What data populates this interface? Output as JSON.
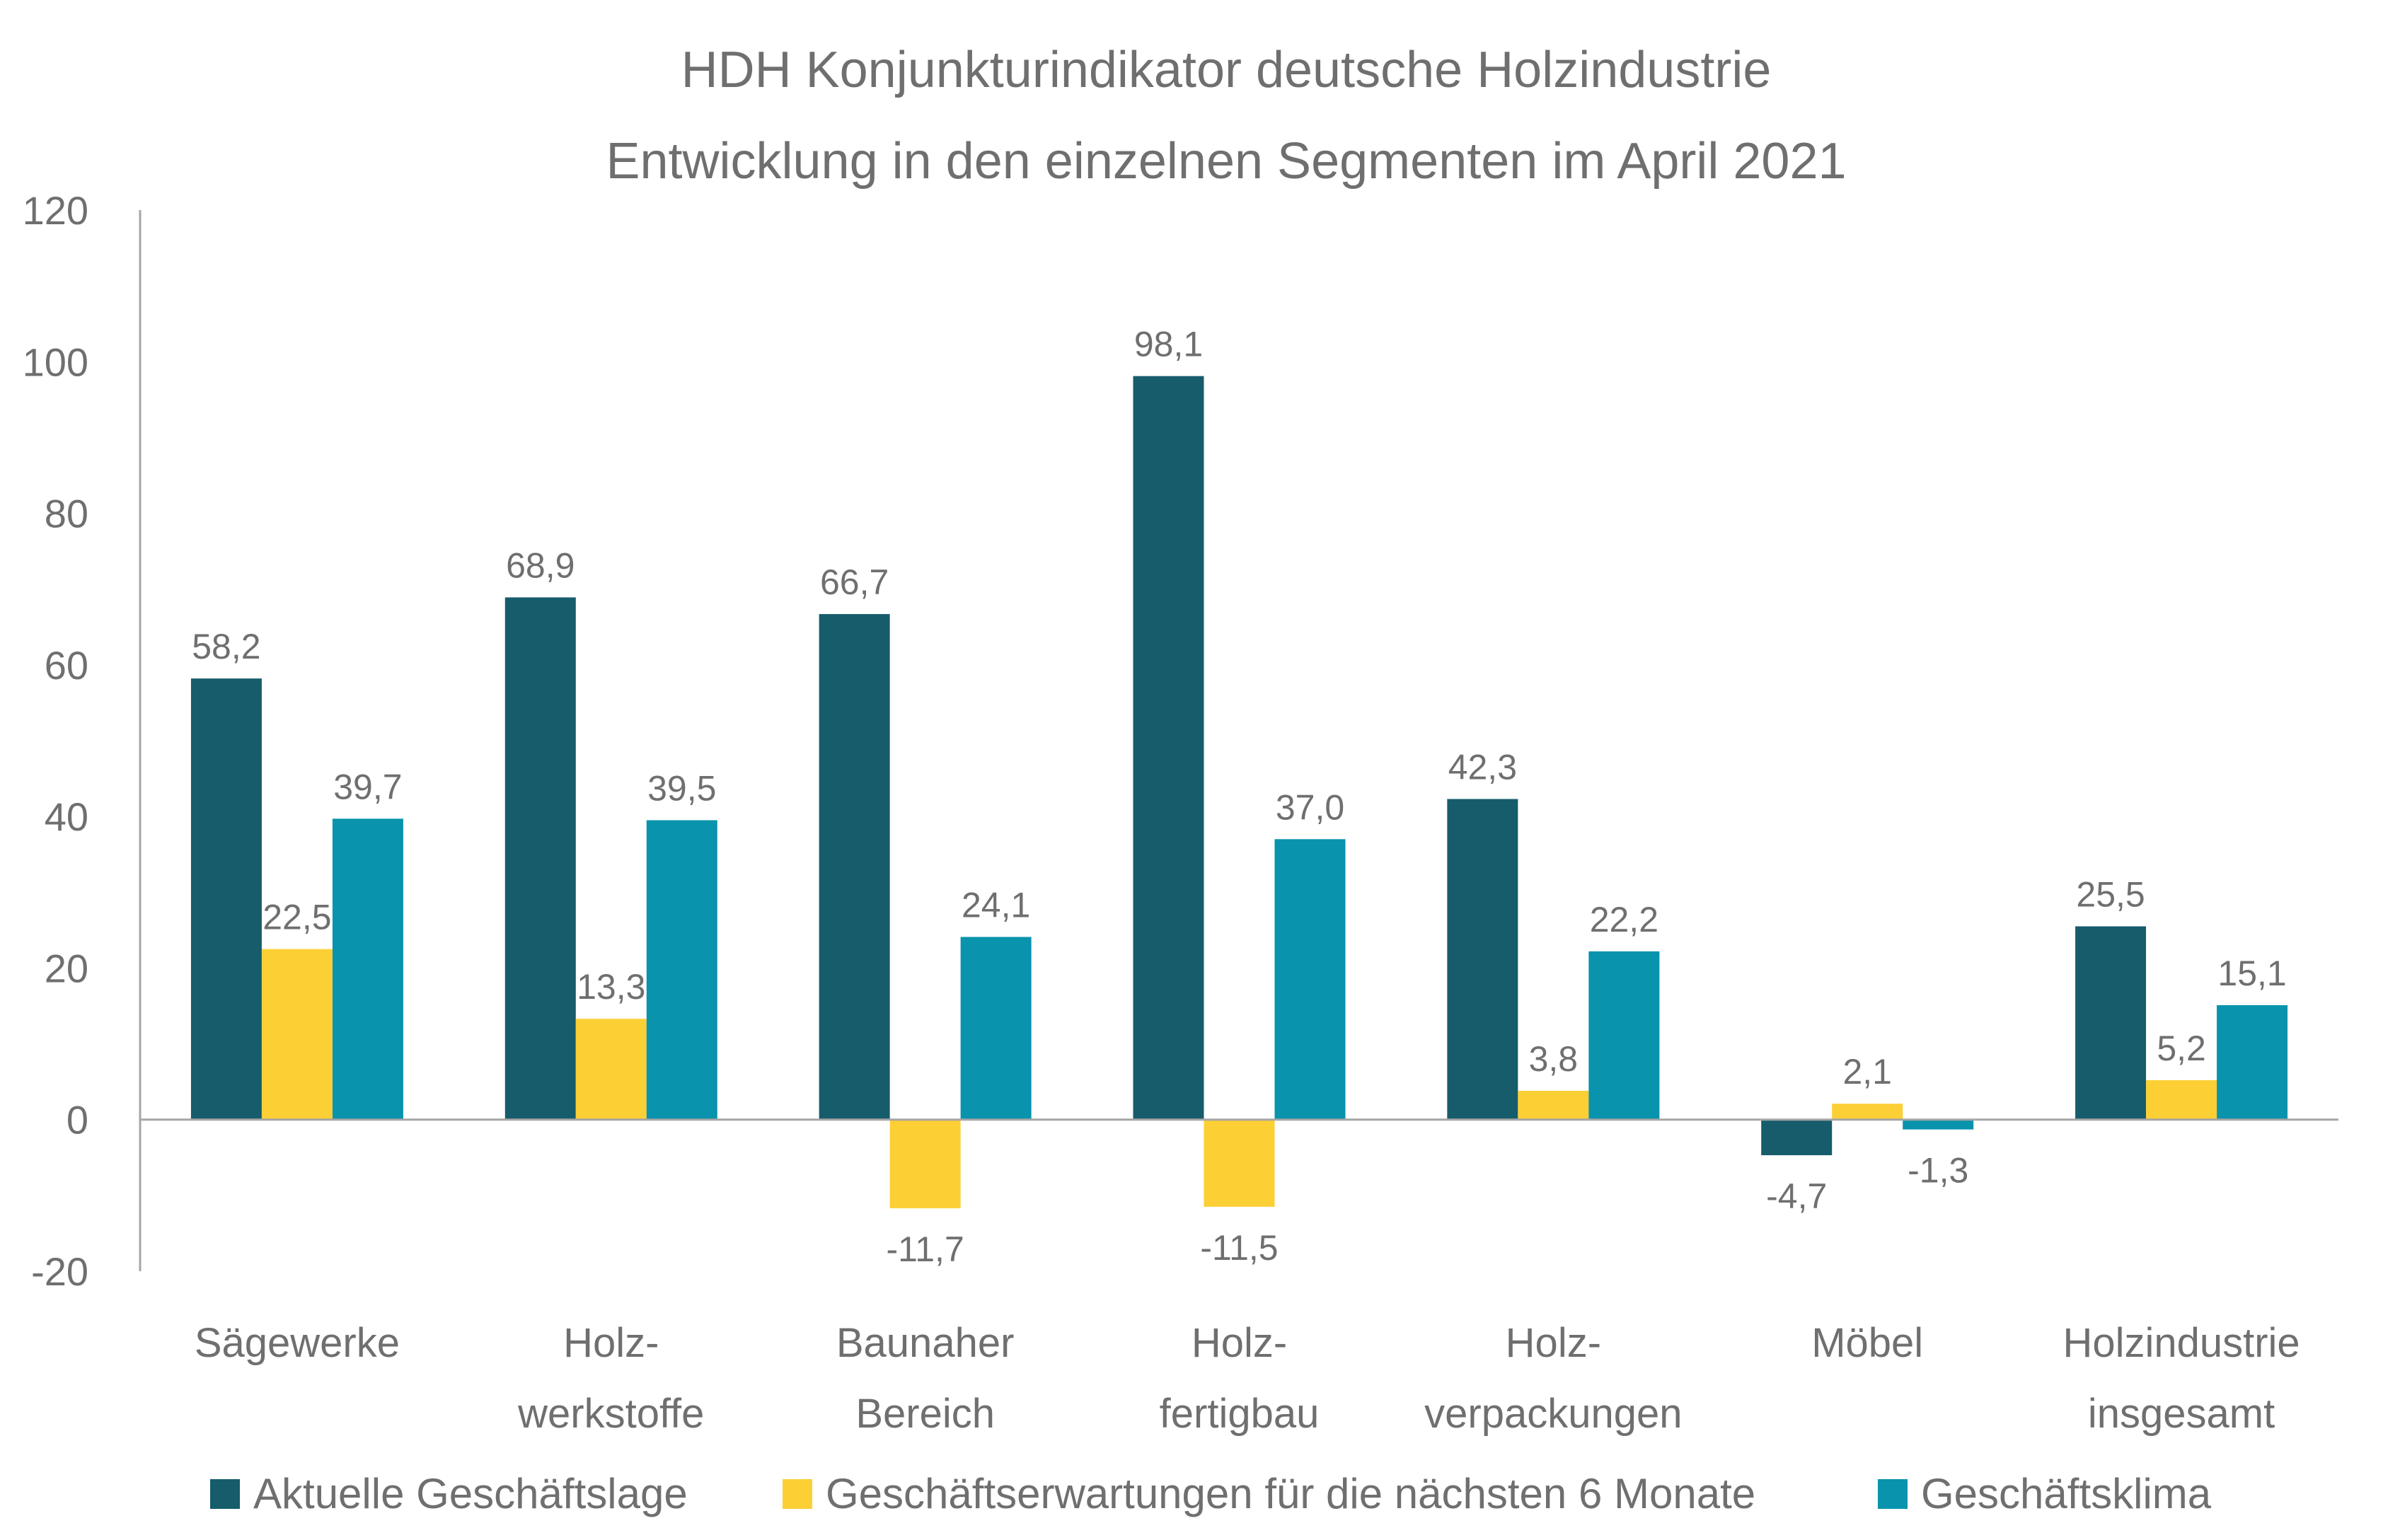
{
  "chart_data": {
    "type": "bar",
    "title": "HDH Konjunkturindikator deutsche Holzindustrie",
    "subtitle": "Entwicklung in den einzelnen Segmenten im April 2021",
    "xlabel": "",
    "ylabel": "",
    "ylim": [
      -20,
      120
    ],
    "yticks": [
      "120",
      "100",
      "80",
      "60",
      "40",
      "20",
      "0",
      "-20"
    ],
    "categories": [
      [
        "Sägewerke"
      ],
      [
        "Holz-",
        "werkstoffe"
      ],
      [
        "Baunaher",
        "Bereich"
      ],
      [
        "Holz-",
        "fertigbau"
      ],
      [
        "Holz-",
        "verpackungen"
      ],
      [
        "Möbel"
      ],
      [
        "Holzindustrie",
        "insgesamt"
      ]
    ],
    "series": [
      {
        "name": "Aktuelle Geschäftslage",
        "color": "#165c6b",
        "values": [
          58.2,
          68.9,
          66.7,
          98.1,
          42.3,
          -4.7,
          25.5
        ],
        "labels": [
          "58,2",
          "68,9",
          "66,7",
          "98,1",
          "42,3",
          "-4,7",
          "25,5"
        ]
      },
      {
        "name": "Geschäftserwartungen für die nächsten 6 Monate",
        "color": "#fccf35",
        "values": [
          22.5,
          13.3,
          -11.7,
          -11.5,
          3.8,
          2.1,
          5.2
        ],
        "labels": [
          "22,5",
          "13,3",
          "-11,7",
          "-11,5",
          "3,8",
          "2,1",
          "5,2"
        ]
      },
      {
        "name": "Geschäftsklima",
        "color": "#0993ad",
        "values": [
          39.7,
          39.5,
          24.1,
          37.0,
          22.2,
          -1.3,
          15.1
        ],
        "labels": [
          "39,7",
          "39,5",
          "24,1",
          "37,0",
          "22,2",
          "-1,3",
          "15,1"
        ]
      }
    ],
    "grid": false,
    "legend_position": "bottom"
  }
}
